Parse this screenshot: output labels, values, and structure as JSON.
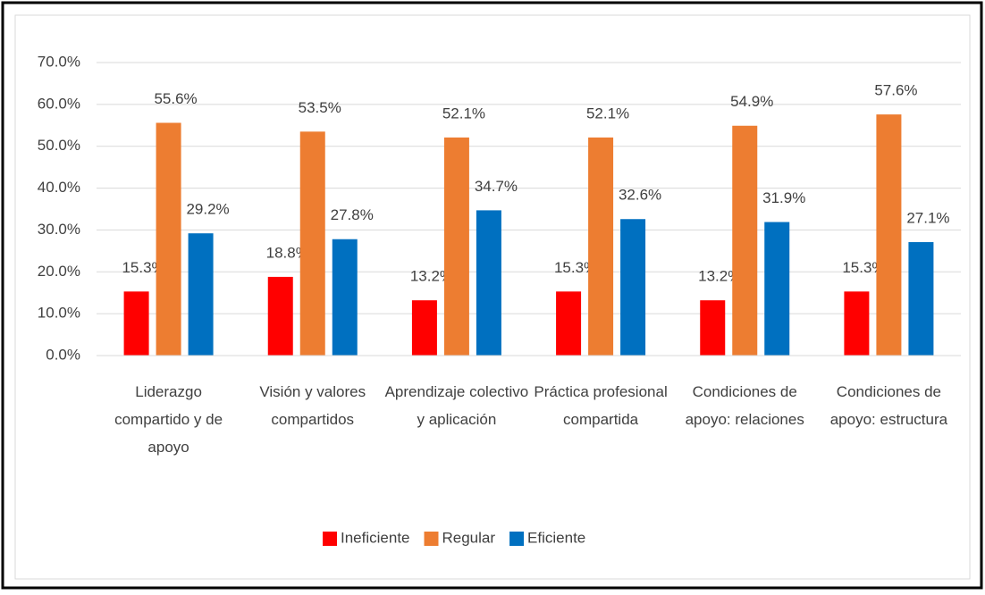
{
  "chart_data": {
    "type": "bar",
    "categories": [
      "Liderazgo compartido y de apoyo",
      "Visión y valores compartidos",
      "Aprendizaje colectivo y aplicación",
      "Práctica profesional compartida",
      "Condiciones de apoyo: relaciones",
      "Condiciones de apoyo: estructura"
    ],
    "series": [
      {
        "name": "Ineficiente",
        "color": "#ff0000",
        "values": [
          15.3,
          18.8,
          13.2,
          15.3,
          13.2,
          15.3
        ],
        "value_labels": [
          "15.3%",
          "18.8%",
          "13.2%",
          "15.3%",
          "13.2%",
          "15.3%"
        ]
      },
      {
        "name": "Regular",
        "color": "#ed7d31",
        "values": [
          55.6,
          53.5,
          52.1,
          52.1,
          54.9,
          57.6
        ],
        "value_labels": [
          "55.6%",
          "53.5%",
          "52.1%",
          "52.1%",
          "54.9%",
          "57.6%"
        ]
      },
      {
        "name": "Eficiente",
        "color": "#0070c0",
        "values": [
          29.2,
          27.8,
          34.7,
          32.6,
          31.9,
          27.1
        ],
        "value_labels": [
          "29.2%",
          "27.8%",
          "34.7%",
          "32.6%",
          "31.9%",
          "27.1%"
        ]
      }
    ],
    "ylim": [
      0,
      70
    ],
    "yticks": [
      {
        "value": 0,
        "label": "0.0%"
      },
      {
        "value": 10,
        "label": "10.0%"
      },
      {
        "value": 20,
        "label": "20.0%"
      },
      {
        "value": 30,
        "label": "30.0%"
      },
      {
        "value": 40,
        "label": "40.0%"
      },
      {
        "value": 50,
        "label": "50.0%"
      },
      {
        "value": 60,
        "label": "60.0%"
      },
      {
        "value": 70,
        "label": "70.0%"
      }
    ],
    "grid": true,
    "legend": "bottom"
  }
}
